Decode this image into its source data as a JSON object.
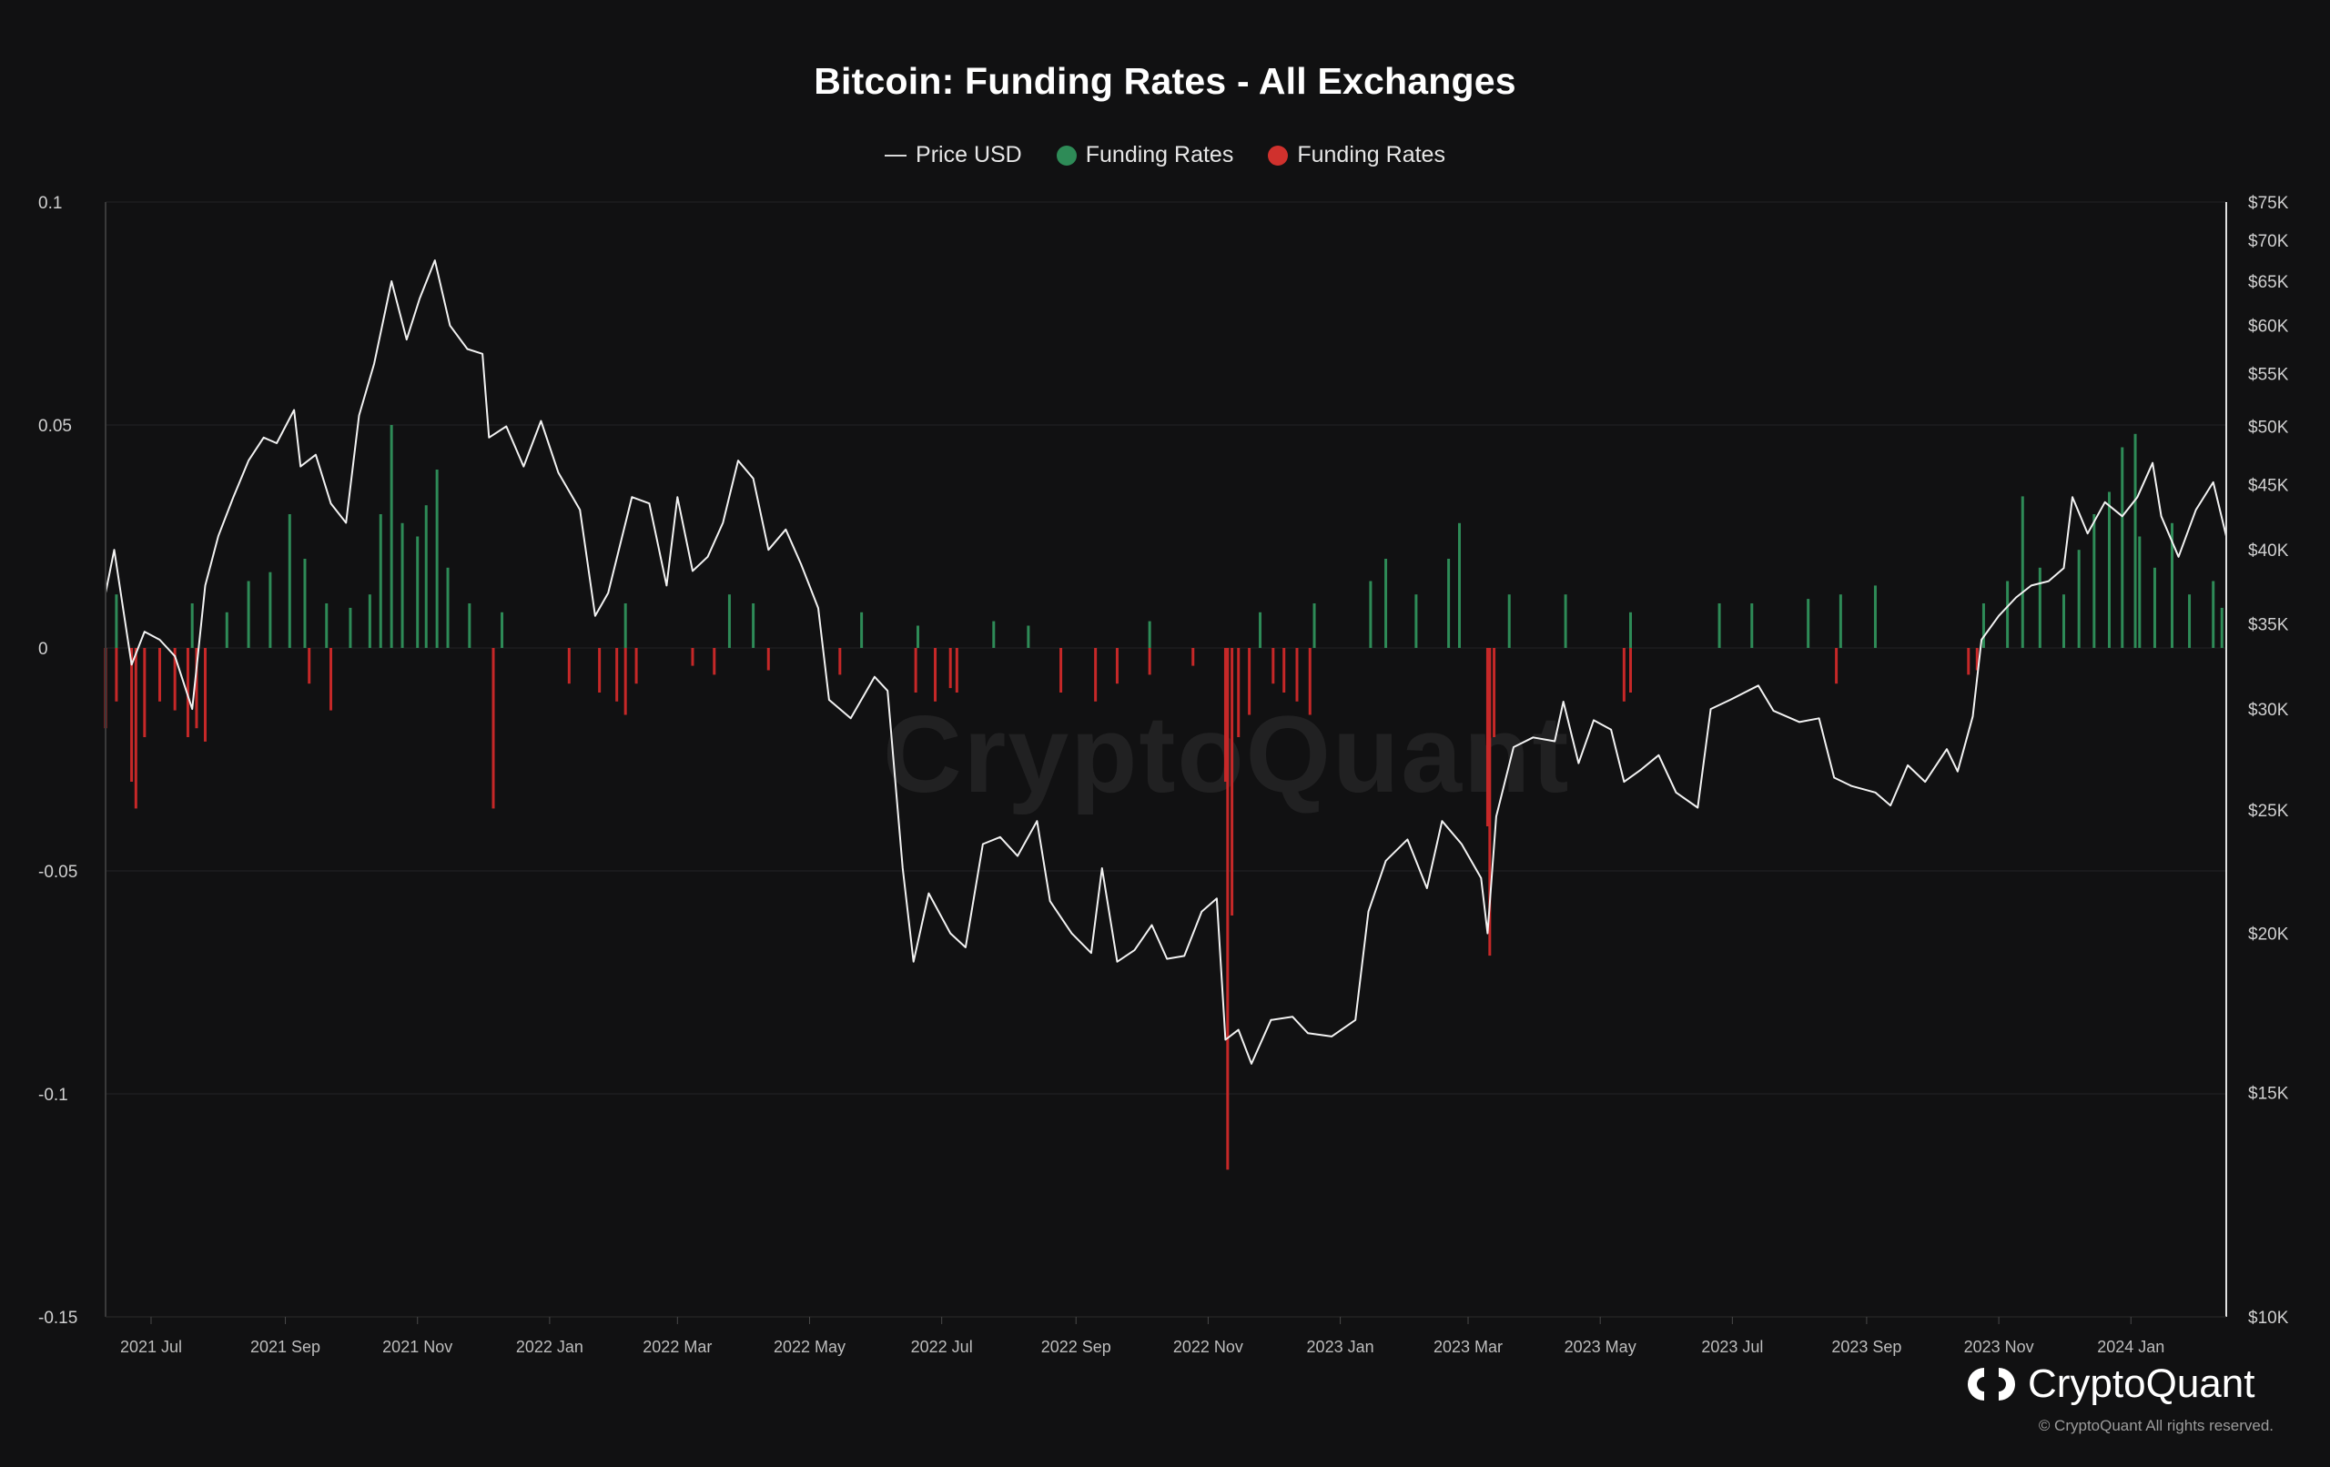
{
  "title": "Bitcoin: Funding Rates - All Exchanges",
  "legend": [
    {
      "label": "Price USD",
      "kind": "line",
      "color": "#d9d9d9"
    },
    {
      "label": "Funding Rates",
      "kind": "dot",
      "color": "#2e8b57"
    },
    {
      "label": "Funding Rates",
      "kind": "dot",
      "color": "#d0312d"
    }
  ],
  "watermark": "CryptoQuant",
  "brand": "CryptoQuant",
  "copyright": "© CryptoQuant All rights reserved.",
  "colors": {
    "background": "#111112",
    "positive": "#2e8b57",
    "negative": "#c62828",
    "price_line": "#f2f2f2",
    "grid": "#232325"
  },
  "chart_data": {
    "type": "bar",
    "title": "Bitcoin: Funding Rates - All Exchanges",
    "left_axis": {
      "ylim": [
        -0.15,
        0.1
      ],
      "ticks": [
        0.1,
        0.05,
        0,
        -0.05,
        -0.1,
        -0.15
      ],
      "tick_labels": [
        "0.1",
        "0.05",
        "0",
        "-0.05",
        "-0.1",
        "-0.15"
      ]
    },
    "right_axis": {
      "scale": "log",
      "ylim": [
        10000,
        75000
      ],
      "ticks": [
        75000,
        70000,
        65000,
        60000,
        55000,
        50000,
        45000,
        40000,
        35000,
        30000,
        25000,
        20000,
        15000,
        10000
      ],
      "tick_labels": [
        "$75K",
        "$70K",
        "$65K",
        "$60K",
        "$55K",
        "$50K",
        "$45K",
        "$40K",
        "$35K",
        "$30K",
        "$25K",
        "$20K",
        "$15K",
        "$10K"
      ]
    },
    "x_axis": {
      "range": [
        "2021-06-10",
        "2024-02-14"
      ],
      "ticks": [
        "2021-07-01",
        "2021-09-01",
        "2021-11-01",
        "2022-01-01",
        "2022-03-01",
        "2022-05-01",
        "2022-07-01",
        "2022-09-01",
        "2022-11-01",
        "2023-01-01",
        "2023-03-01",
        "2023-05-01",
        "2023-07-01",
        "2023-09-01",
        "2023-11-01",
        "2024-01-01"
      ],
      "tick_labels": [
        "2021 Jul",
        "2021 Sep",
        "2021 Nov",
        "2022 Jan",
        "2022 Mar",
        "2022 May",
        "2022 Jul",
        "2022 Sep",
        "2022 Nov",
        "2023 Jan",
        "2023 Mar",
        "2023 May",
        "2023 Jul",
        "2023 Sep",
        "2023 Nov",
        "2024 Jan"
      ]
    },
    "grid": true,
    "legend_position": "top-center",
    "series": [
      {
        "name": "Price USD",
        "type": "line",
        "axis": "right",
        "points": [
          [
            "2021-06-10",
            37000
          ],
          [
            "2021-06-14",
            40000
          ],
          [
            "2021-06-22",
            32500
          ],
          [
            "2021-06-28",
            34500
          ],
          [
            "2021-07-05",
            34000
          ],
          [
            "2021-07-12",
            33000
          ],
          [
            "2021-07-20",
            30000
          ],
          [
            "2021-07-26",
            37500
          ],
          [
            "2021-08-01",
            41000
          ],
          [
            "2021-08-08",
            44000
          ],
          [
            "2021-08-15",
            47000
          ],
          [
            "2021-08-22",
            49000
          ],
          [
            "2021-08-28",
            48500
          ],
          [
            "2021-09-05",
            51500
          ],
          [
            "2021-09-08",
            46500
          ],
          [
            "2021-09-15",
            47500
          ],
          [
            "2021-09-22",
            43500
          ],
          [
            "2021-09-29",
            42000
          ],
          [
            "2021-10-05",
            51000
          ],
          [
            "2021-10-12",
            56000
          ],
          [
            "2021-10-20",
            65000
          ],
          [
            "2021-10-27",
            58500
          ],
          [
            "2021-11-02",
            63000
          ],
          [
            "2021-11-09",
            67500
          ],
          [
            "2021-11-16",
            60000
          ],
          [
            "2021-11-24",
            57500
          ],
          [
            "2021-12-01",
            57000
          ],
          [
            "2021-12-04",
            49000
          ],
          [
            "2021-12-12",
            50000
          ],
          [
            "2021-12-20",
            46500
          ],
          [
            "2021-12-28",
            50500
          ],
          [
            "2022-01-05",
            46000
          ],
          [
            "2022-01-15",
            43000
          ],
          [
            "2022-01-22",
            35500
          ],
          [
            "2022-01-28",
            37000
          ],
          [
            "2022-02-08",
            44000
          ],
          [
            "2022-02-16",
            43500
          ],
          [
            "2022-02-24",
            37500
          ],
          [
            "2022-03-01",
            44000
          ],
          [
            "2022-03-08",
            38500
          ],
          [
            "2022-03-15",
            39500
          ],
          [
            "2022-03-22",
            42000
          ],
          [
            "2022-03-29",
            47000
          ],
          [
            "2022-04-05",
            45500
          ],
          [
            "2022-04-12",
            40000
          ],
          [
            "2022-04-20",
            41500
          ],
          [
            "2022-04-27",
            39000
          ],
          [
            "2022-05-05",
            36000
          ],
          [
            "2022-05-10",
            30500
          ],
          [
            "2022-05-20",
            29500
          ],
          [
            "2022-05-31",
            31800
          ],
          [
            "2022-06-06",
            31000
          ],
          [
            "2022-06-13",
            22500
          ],
          [
            "2022-06-18",
            19000
          ],
          [
            "2022-06-25",
            21500
          ],
          [
            "2022-07-05",
            20000
          ],
          [
            "2022-07-12",
            19500
          ],
          [
            "2022-07-20",
            23500
          ],
          [
            "2022-07-28",
            23800
          ],
          [
            "2022-08-05",
            23000
          ],
          [
            "2022-08-14",
            24500
          ],
          [
            "2022-08-20",
            21200
          ],
          [
            "2022-08-30",
            20000
          ],
          [
            "2022-09-08",
            19300
          ],
          [
            "2022-09-13",
            22500
          ],
          [
            "2022-09-20",
            19000
          ],
          [
            "2022-09-28",
            19400
          ],
          [
            "2022-10-06",
            20300
          ],
          [
            "2022-10-13",
            19100
          ],
          [
            "2022-10-21",
            19200
          ],
          [
            "2022-10-29",
            20800
          ],
          [
            "2022-11-05",
            21300
          ],
          [
            "2022-11-09",
            16500
          ],
          [
            "2022-11-15",
            16800
          ],
          [
            "2022-11-21",
            15800
          ],
          [
            "2022-11-30",
            17100
          ],
          [
            "2022-12-10",
            17200
          ],
          [
            "2022-12-17",
            16700
          ],
          [
            "2022-12-28",
            16600
          ],
          [
            "2023-01-08",
            17100
          ],
          [
            "2023-01-14",
            20800
          ],
          [
            "2023-01-22",
            22800
          ],
          [
            "2023-02-01",
            23700
          ],
          [
            "2023-02-10",
            21700
          ],
          [
            "2023-02-17",
            24500
          ],
          [
            "2023-02-26",
            23500
          ],
          [
            "2023-03-07",
            22100
          ],
          [
            "2023-03-10",
            20000
          ],
          [
            "2023-03-14",
            24700
          ],
          [
            "2023-03-22",
            28000
          ],
          [
            "2023-03-31",
            28500
          ],
          [
            "2023-04-10",
            28300
          ],
          [
            "2023-04-14",
            30400
          ],
          [
            "2023-04-21",
            27200
          ],
          [
            "2023-04-28",
            29400
          ],
          [
            "2023-05-06",
            28900
          ],
          [
            "2023-05-12",
            26300
          ],
          [
            "2023-05-20",
            26900
          ],
          [
            "2023-05-28",
            27600
          ],
          [
            "2023-06-05",
            25800
          ],
          [
            "2023-06-15",
            25100
          ],
          [
            "2023-06-21",
            30000
          ],
          [
            "2023-06-30",
            30500
          ],
          [
            "2023-07-13",
            31300
          ],
          [
            "2023-07-20",
            29900
          ],
          [
            "2023-08-01",
            29300
          ],
          [
            "2023-08-10",
            29500
          ],
          [
            "2023-08-17",
            26500
          ],
          [
            "2023-08-25",
            26100
          ],
          [
            "2023-09-05",
            25800
          ],
          [
            "2023-09-12",
            25200
          ],
          [
            "2023-09-20",
            27100
          ],
          [
            "2023-09-28",
            26300
          ],
          [
            "2023-10-08",
            27900
          ],
          [
            "2023-10-13",
            26800
          ],
          [
            "2023-10-20",
            29600
          ],
          [
            "2023-10-24",
            34000
          ],
          [
            "2023-11-01",
            35500
          ],
          [
            "2023-11-09",
            36700
          ],
          [
            "2023-11-16",
            37500
          ],
          [
            "2023-11-24",
            37800
          ],
          [
            "2023-12-01",
            38700
          ],
          [
            "2023-12-05",
            44000
          ],
          [
            "2023-12-12",
            41200
          ],
          [
            "2023-12-20",
            43600
          ],
          [
            "2023-12-28",
            42500
          ],
          [
            "2024-01-04",
            44000
          ],
          [
            "2024-01-11",
            46800
          ],
          [
            "2024-01-15",
            42500
          ],
          [
            "2024-01-23",
            39500
          ],
          [
            "2024-01-31",
            43000
          ],
          [
            "2024-02-08",
            45200
          ],
          [
            "2024-02-14",
            41000
          ]
        ]
      },
      {
        "name": "Funding Rates",
        "type": "bar",
        "axis": "left",
        "color": "#2e8b57",
        "note": "positive funding rates (green)",
        "points": [
          [
            "2021-06-15",
            0.012
          ],
          [
            "2021-07-20",
            0.01
          ],
          [
            "2021-08-05",
            0.008
          ],
          [
            "2021-08-15",
            0.015
          ],
          [
            "2021-08-25",
            0.017
          ],
          [
            "2021-09-03",
            0.03
          ],
          [
            "2021-09-10",
            0.02
          ],
          [
            "2021-09-20",
            0.01
          ],
          [
            "2021-10-01",
            0.009
          ],
          [
            "2021-10-10",
            0.012
          ],
          [
            "2021-10-15",
            0.03
          ],
          [
            "2021-10-20",
            0.05
          ],
          [
            "2021-10-25",
            0.028
          ],
          [
            "2021-11-01",
            0.025
          ],
          [
            "2021-11-05",
            0.032
          ],
          [
            "2021-11-10",
            0.04
          ],
          [
            "2021-11-15",
            0.018
          ],
          [
            "2021-11-25",
            0.01
          ],
          [
            "2021-12-10",
            0.008
          ],
          [
            "2022-02-05",
            0.01
          ],
          [
            "2022-03-25",
            0.012
          ],
          [
            "2022-04-05",
            0.01
          ],
          [
            "2022-05-25",
            0.008
          ],
          [
            "2022-06-20",
            0.005
          ],
          [
            "2022-07-25",
            0.006
          ],
          [
            "2022-08-10",
            0.005
          ],
          [
            "2022-10-05",
            0.006
          ],
          [
            "2022-11-25",
            0.008
          ],
          [
            "2022-12-20",
            0.01
          ],
          [
            "2023-01-15",
            0.015
          ],
          [
            "2023-01-22",
            0.02
          ],
          [
            "2023-02-05",
            0.012
          ],
          [
            "2023-02-20",
            0.02
          ],
          [
            "2023-02-25",
            0.028
          ],
          [
            "2023-03-20",
            0.012
          ],
          [
            "2023-04-15",
            0.012
          ],
          [
            "2023-05-15",
            0.008
          ],
          [
            "2023-06-25",
            0.01
          ],
          [
            "2023-07-10",
            0.01
          ],
          [
            "2023-08-05",
            0.011
          ],
          [
            "2023-08-20",
            0.012
          ],
          [
            "2023-09-05",
            0.014
          ],
          [
            "2023-10-25",
            0.01
          ],
          [
            "2023-11-05",
            0.015
          ],
          [
            "2023-11-12",
            0.034
          ],
          [
            "2023-11-20",
            0.018
          ],
          [
            "2023-12-01",
            0.012
          ],
          [
            "2023-12-08",
            0.022
          ],
          [
            "2023-12-15",
            0.03
          ],
          [
            "2023-12-22",
            0.035
          ],
          [
            "2023-12-28",
            0.045
          ],
          [
            "2024-01-03",
            0.048
          ],
          [
            "2024-01-05",
            0.025
          ],
          [
            "2024-01-12",
            0.018
          ],
          [
            "2024-01-20",
            0.028
          ],
          [
            "2024-01-28",
            0.012
          ],
          [
            "2024-02-08",
            0.015
          ],
          [
            "2024-02-12",
            0.009
          ]
        ]
      },
      {
        "name": "Funding Rates",
        "type": "bar",
        "axis": "left",
        "color": "#c62828",
        "note": "negative funding rates (red)",
        "points": [
          [
            "2021-06-10",
            -0.018
          ],
          [
            "2021-06-15",
            -0.012
          ],
          [
            "2021-06-22",
            -0.03
          ],
          [
            "2021-06-24",
            -0.036
          ],
          [
            "2021-06-28",
            -0.02
          ],
          [
            "2021-07-05",
            -0.012
          ],
          [
            "2021-07-12",
            -0.014
          ],
          [
            "2021-07-18",
            -0.02
          ],
          [
            "2021-07-22",
            -0.018
          ],
          [
            "2021-07-26",
            -0.021
          ],
          [
            "2021-09-12",
            -0.008
          ],
          [
            "2021-09-22",
            -0.014
          ],
          [
            "2021-12-06",
            -0.036
          ],
          [
            "2022-01-10",
            -0.008
          ],
          [
            "2022-01-24",
            -0.01
          ],
          [
            "2022-02-01",
            -0.012
          ],
          [
            "2022-02-05",
            -0.015
          ],
          [
            "2022-02-10",
            -0.008
          ],
          [
            "2022-03-08",
            -0.004
          ],
          [
            "2022-03-18",
            -0.006
          ],
          [
            "2022-04-12",
            -0.005
          ],
          [
            "2022-05-15",
            -0.006
          ],
          [
            "2022-06-19",
            -0.01
          ],
          [
            "2022-06-28",
            -0.012
          ],
          [
            "2022-07-05",
            -0.009
          ],
          [
            "2022-07-08",
            -0.01
          ],
          [
            "2022-08-25",
            -0.01
          ],
          [
            "2022-09-10",
            -0.012
          ],
          [
            "2022-09-20",
            -0.008
          ],
          [
            "2022-10-05",
            -0.006
          ],
          [
            "2022-10-25",
            -0.004
          ],
          [
            "2022-11-09",
            -0.03
          ],
          [
            "2022-11-10",
            -0.117
          ],
          [
            "2022-11-12",
            -0.06
          ],
          [
            "2022-11-15",
            -0.02
          ],
          [
            "2022-11-20",
            -0.015
          ],
          [
            "2022-12-01",
            -0.008
          ],
          [
            "2022-12-06",
            -0.01
          ],
          [
            "2022-12-12",
            -0.012
          ],
          [
            "2022-12-18",
            -0.015
          ],
          [
            "2023-03-10",
            -0.04
          ],
          [
            "2023-03-11",
            -0.069
          ],
          [
            "2023-03-13",
            -0.02
          ],
          [
            "2023-05-12",
            -0.012
          ],
          [
            "2023-05-15",
            -0.01
          ],
          [
            "2023-08-18",
            -0.008
          ],
          [
            "2023-10-18",
            -0.006
          ],
          [
            "2023-10-22",
            -0.005
          ]
        ]
      }
    ]
  }
}
